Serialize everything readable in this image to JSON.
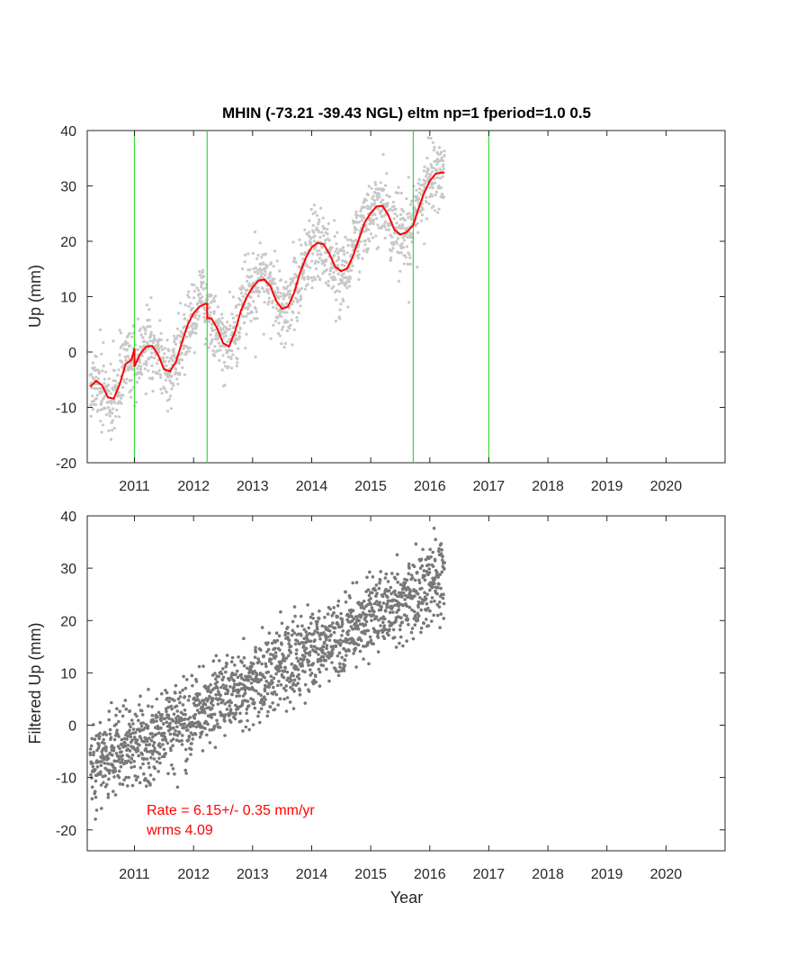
{
  "chart_data": [
    {
      "type": "scatter",
      "title": "MHIN (-73.21 -39.43 NGL) eltm np=1 fperiod=1.0 0.5",
      "xlabel": "",
      "ylabel": "Up (mm)",
      "xlim": [
        2010.2,
        2021.0
      ],
      "ylim": [
        -20,
        40
      ],
      "xticks": [
        "2011",
        "2012",
        "2013",
        "2014",
        "2015",
        "2016",
        "2017",
        "2018",
        "2019",
        "2020"
      ],
      "yticks": [
        "-20",
        "-10",
        "0",
        "10",
        "20",
        "30",
        "40"
      ],
      "grid": false,
      "offset_lines": [
        2011.0,
        2012.23,
        2015.72,
        2017.0
      ],
      "model_fit": {
        "color": "#ff0000",
        "x": [
          2010.25,
          2010.35,
          2010.45,
          2010.55,
          2010.65,
          2010.75,
          2010.85,
          2010.95,
          2011.0,
          2011.0,
          2011.1,
          2011.2,
          2011.3,
          2011.4,
          2011.5,
          2011.6,
          2011.7,
          2011.8,
          2011.9,
          2012.0,
          2012.1,
          2012.2,
          2012.23,
          2012.23,
          2012.3,
          2012.4,
          2012.5,
          2012.6,
          2012.7,
          2012.8,
          2012.9,
          2013.0,
          2013.1,
          2013.2,
          2013.3,
          2013.4,
          2013.5,
          2013.6,
          2013.7,
          2013.8,
          2013.9,
          2014.0,
          2014.1,
          2014.2,
          2014.3,
          2014.4,
          2014.5,
          2014.6,
          2014.7,
          2014.8,
          2014.9,
          2015.0,
          2015.1,
          2015.2,
          2015.3,
          2015.4,
          2015.5,
          2015.6,
          2015.72,
          2015.8,
          2015.9,
          2016.0,
          2016.1,
          2016.2,
          2016.25
        ],
        "y": [
          -6.3,
          -5.2,
          -6.0,
          -8.2,
          -8.4,
          -5.8,
          -2.2,
          -1.4,
          0.6,
          -2.6,
          -0.3,
          1.0,
          1.1,
          -0.5,
          -3.1,
          -3.5,
          -1.8,
          1.6,
          4.9,
          7.0,
          8.2,
          8.7,
          8.7,
          6.1,
          6.1,
          4.3,
          1.6,
          1.0,
          3.6,
          7.4,
          9.9,
          11.7,
          12.9,
          13.1,
          11.9,
          9.2,
          7.8,
          8.2,
          10.6,
          14.2,
          17.0,
          18.9,
          19.7,
          19.5,
          17.7,
          15.4,
          14.6,
          15.1,
          17.3,
          20.4,
          23.4,
          25.1,
          26.3,
          26.4,
          24.7,
          22.1,
          21.2,
          21.6,
          22.9,
          25.6,
          28.6,
          30.9,
          32.2,
          32.4,
          32.4
        ]
      },
      "points_color": "#c8c8c8",
      "points": {
        "n": 1700,
        "x_start": 2010.25,
        "x_end": 2016.25
      }
    },
    {
      "type": "scatter",
      "title": "",
      "xlabel": "Year",
      "ylabel": "Filtered Up (mm)",
      "xlim": [
        2010.2,
        2021.0
      ],
      "ylim": [
        -24,
        40
      ],
      "xticks": [
        "2011",
        "2012",
        "2013",
        "2014",
        "2015",
        "2016",
        "2017",
        "2018",
        "2019",
        "2020"
      ],
      "yticks": [
        "-20",
        "-10",
        "0",
        "10",
        "20",
        "30",
        "40"
      ],
      "grid": false,
      "points_color": "#787878",
      "points": {
        "n": 1700,
        "x_start": 2010.25,
        "x_end": 2016.25
      },
      "trend": {
        "rate_mm_per_yr": 6.15,
        "rate_sigma": 0.35,
        "wrms": 4.09
      },
      "annotations": [
        "Rate = 6.15+/- 0.35 mm/yr",
        "wrms 4.09"
      ]
    }
  ]
}
